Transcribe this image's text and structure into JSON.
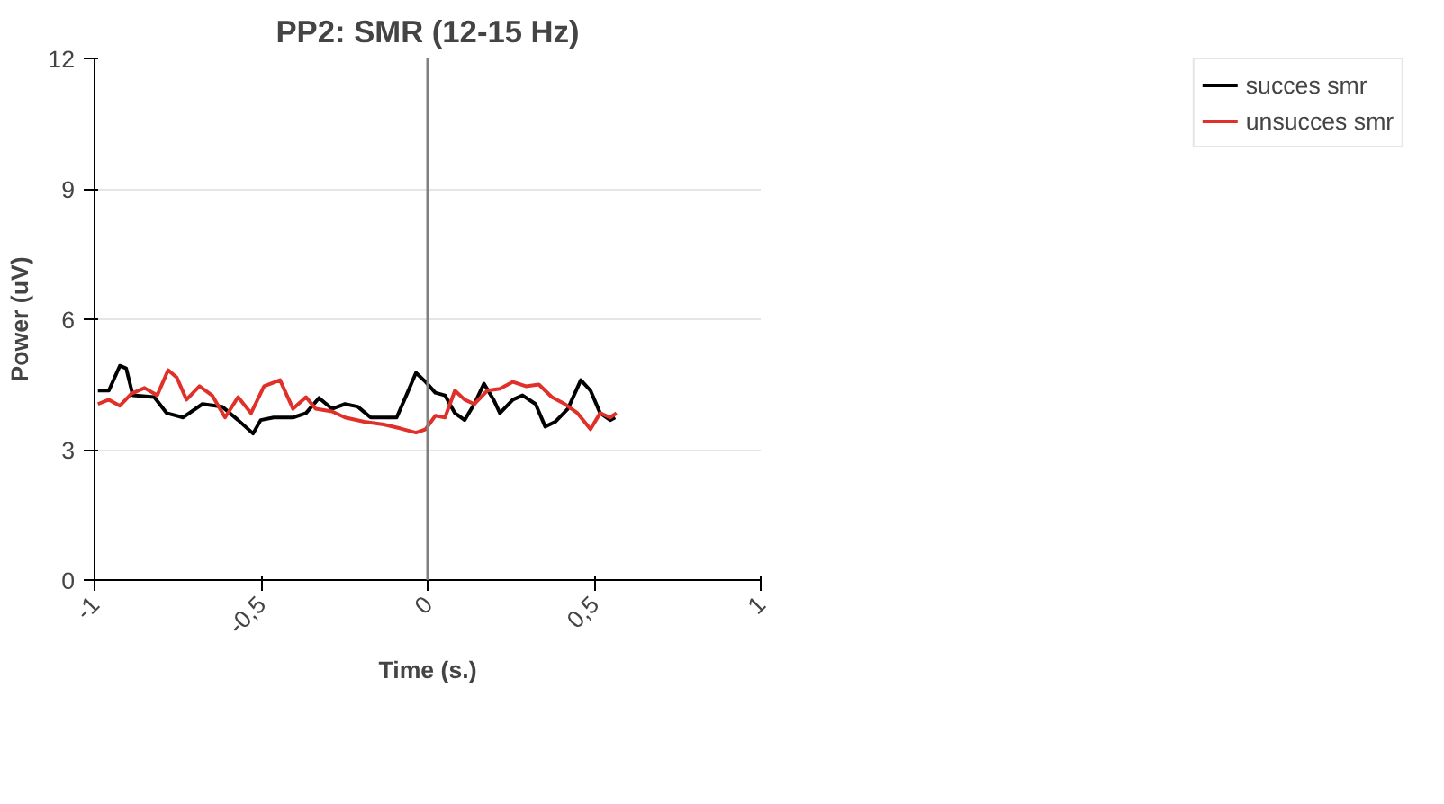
{
  "chart_data": {
    "type": "line",
    "title": "PP2: SMR (12-15 Hz)",
    "xlabel": "Time (s.)",
    "ylabel": "Power (uV)",
    "xlim": [
      -1,
      1
    ],
    "xticks": [
      -1,
      {
        "value": -0.5,
        "label": "-0,5"
      },
      0,
      {
        "value": 0.5,
        "label": "0,5"
      },
      1
    ],
    "ylim": [
      0,
      12
    ],
    "yticks": [
      0,
      3,
      6,
      9,
      12
    ],
    "grid": "y",
    "legend": "top right",
    "marker": "none",
    "line_style": "solid",
    "ref_lines": [
      {
        "axis": "x",
        "value": 0,
        "color": "#808080"
      }
    ],
    "series": [
      {
        "name": "succes smr",
        "color": "#000000",
        "x": [
          -0.99,
          -0.957,
          -0.924,
          -0.905,
          -0.885,
          -0.821,
          -0.783,
          -0.734,
          -0.676,
          -0.617,
          -0.569,
          -0.524,
          -0.501,
          -0.462,
          -0.404,
          -0.365,
          -0.326,
          -0.287,
          -0.248,
          -0.21,
          -0.171,
          -0.142,
          -0.093,
          -0.064,
          -0.035,
          -0.006,
          0.023,
          0.052,
          0.082,
          0.111,
          0.14,
          0.169,
          0.198,
          0.217,
          0.256,
          0.285,
          0.324,
          0.353,
          0.383,
          0.421,
          0.46,
          0.489,
          0.518,
          0.548,
          0.563
        ],
        "values": [
          4.36,
          4.36,
          4.93,
          4.87,
          4.25,
          4.21,
          3.84,
          3.74,
          4.05,
          3.99,
          3.68,
          3.37,
          3.68,
          3.74,
          3.74,
          3.84,
          4.19,
          3.94,
          4.05,
          3.99,
          3.74,
          3.74,
          3.74,
          4.25,
          4.77,
          4.56,
          4.31,
          4.25,
          3.84,
          3.68,
          4.05,
          4.52,
          4.15,
          3.84,
          4.15,
          4.25,
          4.05,
          3.53,
          3.64,
          3.94,
          4.6,
          4.36,
          3.84,
          3.68,
          3.74
        ]
      },
      {
        "name": "unsucces smr",
        "color": "#e0302a",
        "x": [
          -0.99,
          -0.957,
          -0.924,
          -0.889,
          -0.85,
          -0.812,
          -0.779,
          -0.753,
          -0.724,
          -0.685,
          -0.647,
          -0.608,
          -0.569,
          -0.53,
          -0.491,
          -0.443,
          -0.404,
          -0.365,
          -0.336,
          -0.287,
          -0.248,
          -0.19,
          -0.132,
          -0.083,
          -0.035,
          -0.006,
          0.023,
          0.052,
          0.082,
          0.111,
          0.14,
          0.179,
          0.217,
          0.256,
          0.295,
          0.334,
          0.373,
          0.412,
          0.45,
          0.489,
          0.518,
          0.548,
          0.567
        ],
        "values": [
          4.05,
          4.15,
          4.01,
          4.29,
          4.42,
          4.25,
          4.83,
          4.66,
          4.15,
          4.46,
          4.25,
          3.74,
          4.21,
          3.84,
          4.46,
          4.6,
          3.94,
          4.21,
          3.94,
          3.88,
          3.74,
          3.64,
          3.58,
          3.49,
          3.39,
          3.47,
          3.78,
          3.74,
          4.36,
          4.15,
          4.05,
          4.36,
          4.4,
          4.56,
          4.46,
          4.5,
          4.21,
          4.05,
          3.84,
          3.47,
          3.84,
          3.74,
          3.84
        ]
      }
    ]
  }
}
